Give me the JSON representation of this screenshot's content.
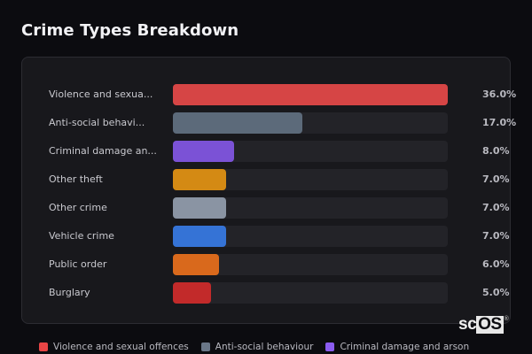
{
  "header": {
    "title": "Crime Types Breakdown"
  },
  "chart_data": {
    "type": "bar",
    "orientation": "horizontal",
    "title": "Crime Types Breakdown",
    "xlabel": "",
    "ylabel": "",
    "unit": "%",
    "xlim": [
      0,
      36
    ],
    "grid": false,
    "legend_position": "bottom",
    "categories": [
      "Violence and sexual offences",
      "Anti-social behaviour",
      "Criminal damage and arson",
      "Other theft",
      "Other crime",
      "Vehicle crime",
      "Public order",
      "Burglary"
    ],
    "values": [
      36.0,
      17.0,
      8.0,
      7.0,
      7.0,
      7.0,
      6.0,
      5.0
    ]
  },
  "rows": [
    {
      "label": "Violence and sexua...",
      "pct": "36.0%",
      "value": 36.0,
      "color": "#d64545"
    },
    {
      "label": "Anti-social behavi...",
      "pct": "17.0%",
      "value": 17.0,
      "color": "#5c6a7a"
    },
    {
      "label": "Criminal damage an...",
      "pct": "8.0%",
      "value": 8.0,
      "color": "#7b52d6"
    },
    {
      "label": "Other theft",
      "pct": "7.0%",
      "value": 7.0,
      "color": "#d48a14"
    },
    {
      "label": "Other crime",
      "pct": "7.0%",
      "value": 7.0,
      "color": "#8a94a3"
    },
    {
      "label": "Vehicle crime",
      "pct": "7.0%",
      "value": 7.0,
      "color": "#3573d6"
    },
    {
      "label": "Public order",
      "pct": "6.0%",
      "value": 6.0,
      "color": "#d9691c"
    },
    {
      "label": "Burglary",
      "pct": "5.0%",
      "value": 5.0,
      "color": "#c22a2a"
    }
  ],
  "legend": [
    {
      "label": "Violence and sexual offences",
      "color": "#e84545"
    },
    {
      "label": "Anti-social behaviour",
      "color": "#6a7788"
    },
    {
      "label": "Criminal damage and arson",
      "color": "#8b5cf0"
    }
  ],
  "watermark": {
    "sc": "sc",
    "os": "OS",
    "reg": "®"
  }
}
